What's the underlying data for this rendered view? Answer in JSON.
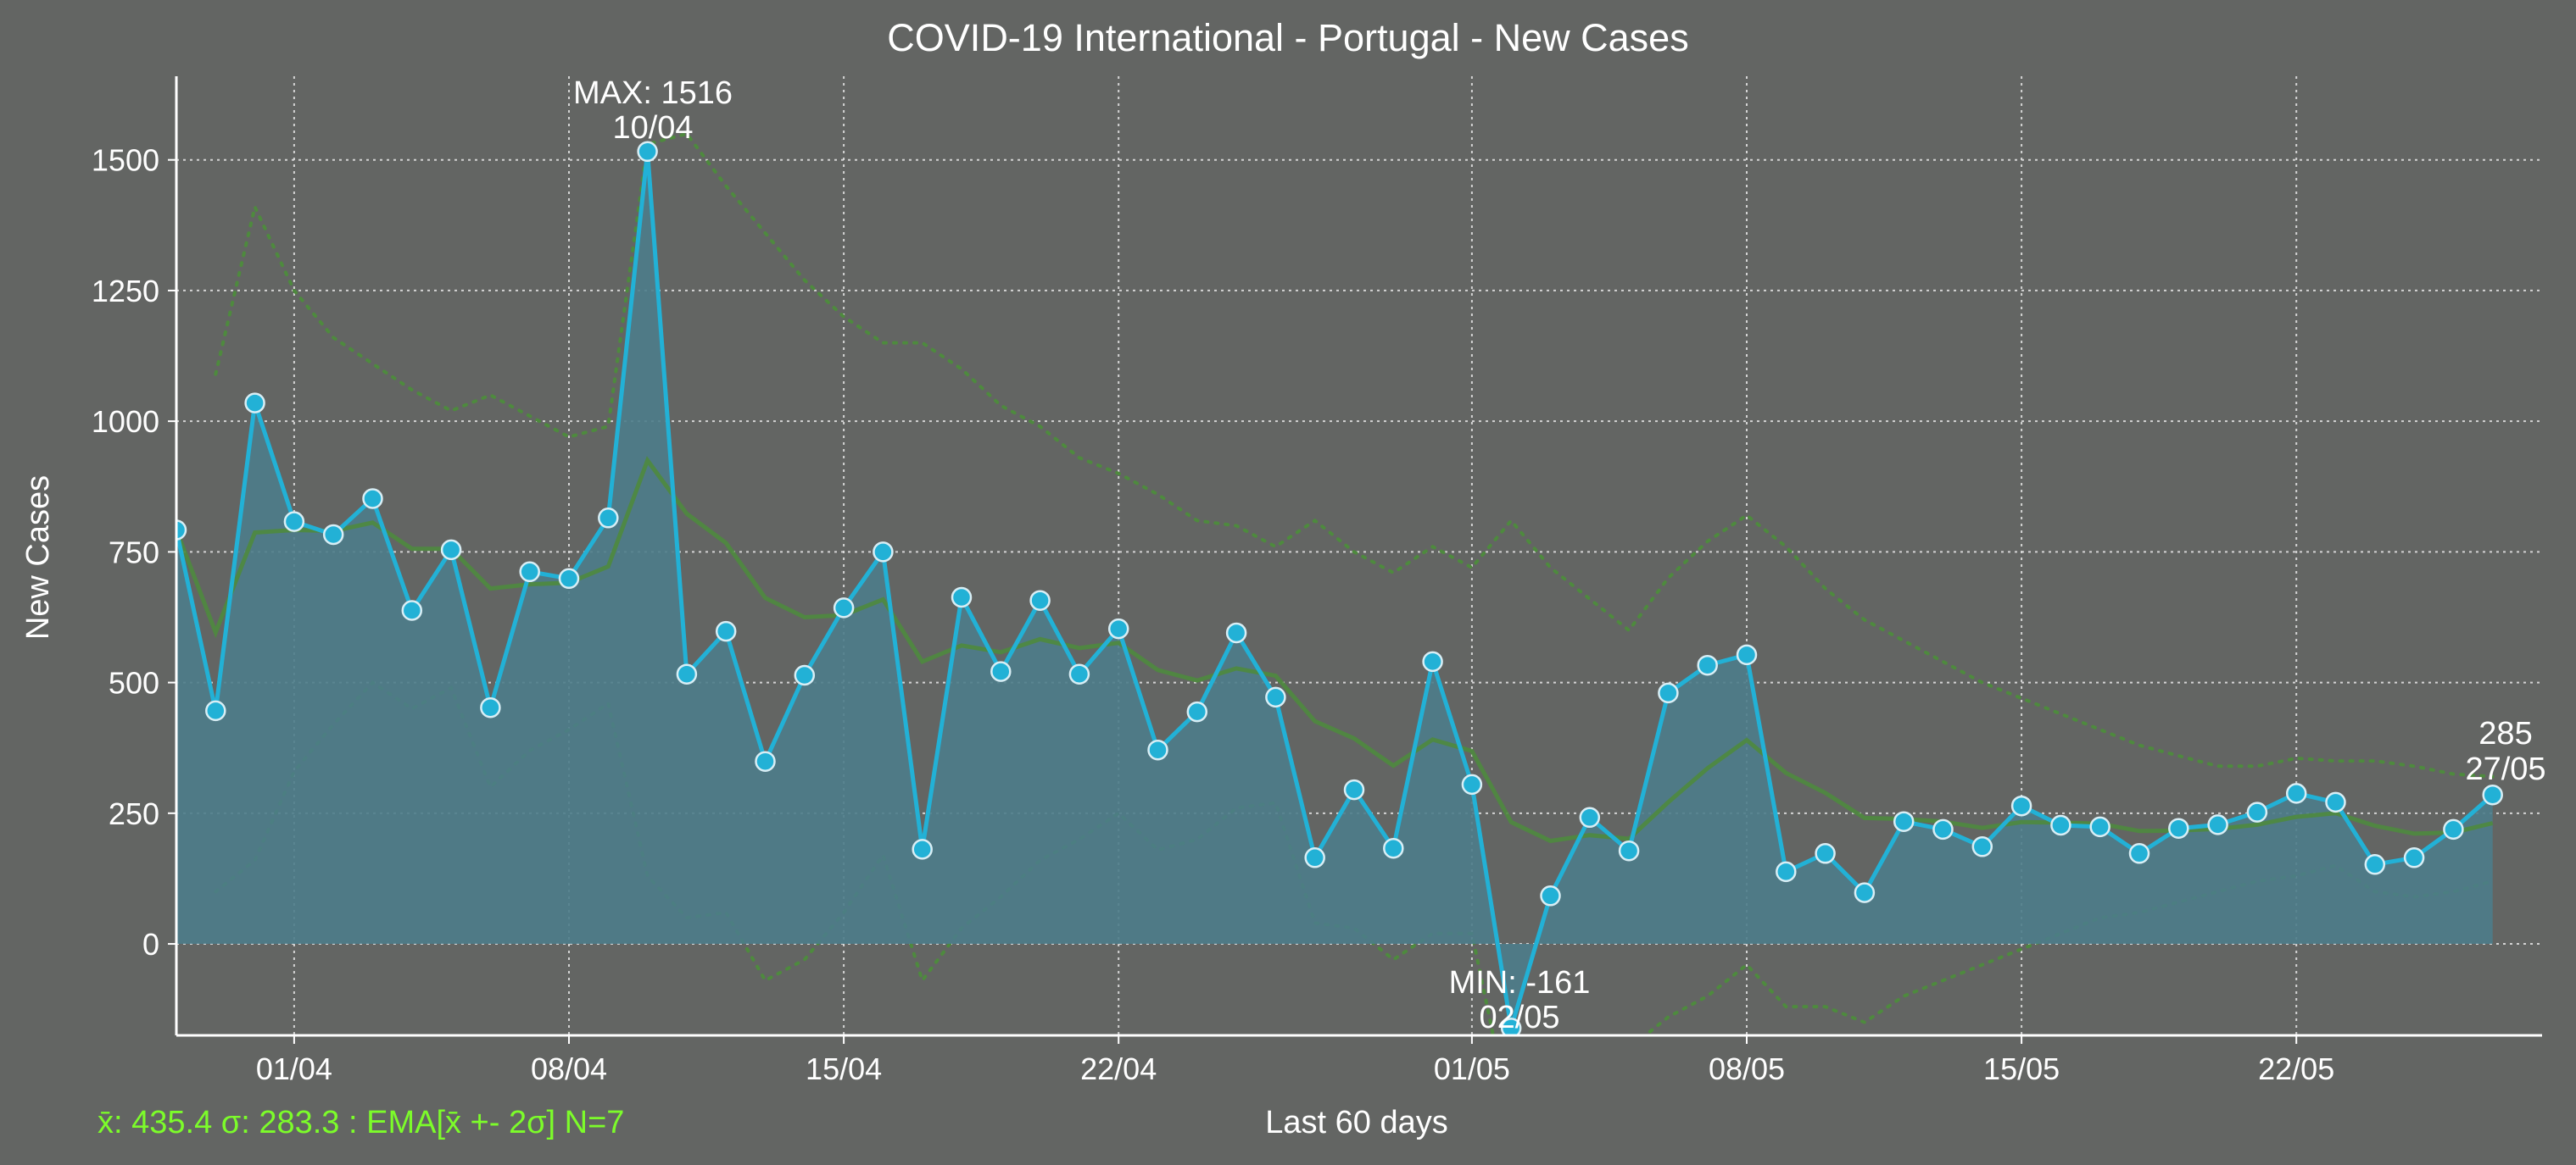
{
  "chart_data": {
    "type": "line",
    "title": "COVID-19 International - Portugal - New Cases",
    "xlabel": "Last 60 days",
    "ylabel": "New Cases",
    "ylim": [
      -175,
      1660
    ],
    "yticks": [
      0,
      250,
      500,
      750,
      1000,
      1250,
      1500
    ],
    "xticks": [
      {
        "label": "01/04",
        "index": 3
      },
      {
        "label": "08/04",
        "index": 10
      },
      {
        "label": "15/04",
        "index": 17
      },
      {
        "label": "22/04",
        "index": 24
      },
      {
        "label": "01/05",
        "index": 33
      },
      {
        "label": "08/05",
        "index": 40
      },
      {
        "label": "15/05",
        "index": 47
      },
      {
        "label": "22/05",
        "index": 54
      }
    ],
    "grid": true,
    "series": [
      {
        "kind": "daily",
        "values": [
          792,
          446,
          1035,
          808,
          783,
          852,
          638,
          754,
          452,
          712,
          699,
          815,
          1516,
          516,
          598,
          349,
          514,
          643,
          750,
          181,
          663,
          521,
          657,
          516,
          603,
          371,
          444,
          595,
          472,
          165,
          295,
          183,
          540,
          305,
          -161,
          92,
          242,
          178,
          480,
          533,
          553,
          138,
          173,
          98,
          234,
          219,
          186,
          264,
          227,
          224,
          173,
          221,
          228,
          252,
          288,
          271,
          152,
          165,
          219,
          285
        ]
      },
      {
        "kind": "ema",
        "values": [
          792,
          596,
          787,
          792,
          790,
          806,
          756,
          756,
          680,
          688,
          691,
          722,
          925,
          823,
          767,
          662,
          625,
          629,
          659,
          540,
          571,
          558,
          583,
          566,
          576,
          524,
          504,
          527,
          513,
          426,
          393,
          341,
          391,
          369,
          233,
          197,
          208,
          201,
          271,
          336,
          390,
          327,
          289,
          241,
          239,
          234,
          222,
          233,
          232,
          230,
          216,
          217,
          220,
          228,
          243,
          250,
          226,
          211,
          213,
          231
        ]
      },
      {
        "kind": "upper band",
        "values": [
          null,
          1090,
          1410,
          1250,
          1160,
          1110,
          1060,
          1020,
          1050,
          1010,
          970,
          990,
          1530,
          1550,
          1450,
          1360,
          1270,
          1200,
          1150,
          1150,
          1100,
          1030,
          990,
          930,
          900,
          860,
          810,
          800,
          760,
          810,
          750,
          710,
          760,
          720,
          810,
          720,
          660,
          600,
          700,
          770,
          820,
          760,
          680,
          620,
          580,
          540,
          500,
          470,
          440,
          410,
          380,
          360,
          340,
          340,
          355,
          350,
          350,
          340,
          325,
          320
        ]
      },
      {
        "kind": "lower band",
        "values": [
          null,
          100,
          160,
          330,
          420,
          500,
          450,
          490,
          300,
          370,
          410,
          460,
          130,
          50,
          60,
          -70,
          -30,
          60,
          170,
          -70,
          30,
          90,
          160,
          200,
          250,
          180,
          200,
          260,
          270,
          40,
          30,
          -30,
          20,
          20,
          -340,
          -330,
          -250,
          -200,
          -140,
          -100,
          -40,
          -120,
          -120,
          -150,
          -100,
          -70,
          -40,
          -10,
          20,
          50,
          60,
          80,
          100,
          120,
          130,
          150,
          100,
          90,
          100,
          120
        ]
      }
    ],
    "annotations": {
      "max_label": "MAX: 1516",
      "max_date": "10/04",
      "max_index": 12,
      "max_value": 1516,
      "min_label": "MIN: -161",
      "min_date": "02/05",
      "min_index": 34,
      "min_value": -161,
      "last_label": "285",
      "last_date": "27/05",
      "last_index": 59,
      "last_value": 285
    },
    "stats_text": "x̄: 435.4 σ: 283.3 : EMA[x̄ +- 2σ] N=7",
    "colors": {
      "background": "#636563",
      "daily_line": "#22b1d6",
      "area_fill": "#4c7c8a",
      "ema_line": "#4e8a3e",
      "band_line": "#4e8a3e",
      "grid": "#e8e8e8",
      "text": "#ffffff",
      "stats_text": "#7cfc2a"
    }
  }
}
